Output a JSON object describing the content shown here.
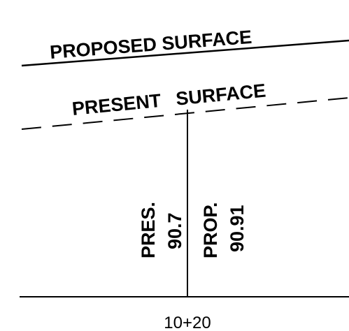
{
  "proposed_surface": {
    "label": "PROPOSED SURFACE"
  },
  "present_surface": {
    "label": "PRESENT SURFACE"
  },
  "elevations": {
    "present": {
      "label": "PRES.",
      "value": "90.7"
    },
    "proposed": {
      "label": "PROP.",
      "value": "90.91"
    }
  },
  "station": {
    "label": "10+20"
  },
  "colors": {
    "ink": "#000000",
    "background": "#ffffff"
  }
}
